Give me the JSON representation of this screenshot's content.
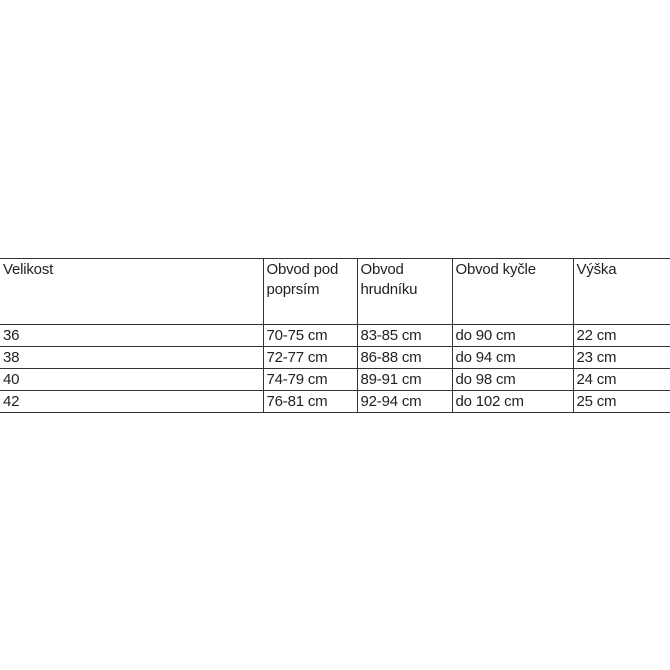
{
  "table": {
    "headers": [
      "Velikost",
      "Obvod pod poprsím",
      "Obvod hrudníku",
      "Obvod kyčle",
      "Výška"
    ],
    "rows": [
      [
        "36",
        "70-75 cm",
        "83-85 cm",
        "do 90 cm",
        "22 cm"
      ],
      [
        "38",
        "72-77 cm",
        "86-88 cm",
        "do 94 cm",
        "23 cm"
      ],
      [
        "40",
        "74-79 cm",
        "89-91 cm",
        "do 98 cm",
        "24 cm"
      ],
      [
        "42",
        "76-81 cm",
        "92-94 cm",
        "do 102 cm",
        "25 cm"
      ]
    ]
  }
}
